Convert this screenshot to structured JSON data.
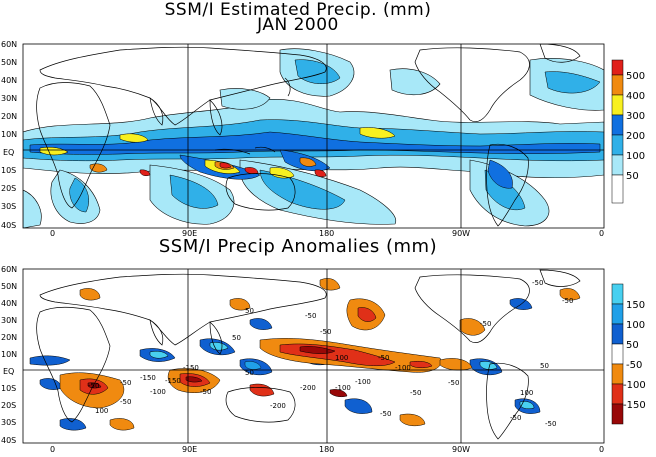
{
  "titles": {
    "top_line1": "SSM/I Estimated Precip. (mm)",
    "top_line2": "JAN 2000",
    "bottom": "SSM/I Precip Anomalies (mm)"
  },
  "lat_labels": [
    "60N",
    "50N",
    "40N",
    "30N",
    "20N",
    "10N",
    "EQ",
    "10S",
    "20S",
    "30S",
    "40S"
  ],
  "lon_labels": [
    "0",
    "90E",
    "180",
    "90W",
    "0"
  ],
  "precip_legend": {
    "labels": [
      "500",
      "400",
      "300",
      "200",
      "100",
      "50"
    ],
    "colors": [
      "#e0201a",
      "#f08a10",
      "#f8f020",
      "#1070e0",
      "#30b0e8",
      "#a8e8f8",
      "#ffffff"
    ]
  },
  "anomaly_legend": {
    "labels": [
      "150",
      "100",
      "50",
      "-50",
      "-100",
      "-150"
    ],
    "colors": [
      "#48d0f0",
      "#20a0e8",
      "#1060d0",
      "#ffffff",
      "#f08a10",
      "#e03018",
      "#980808"
    ]
  },
  "contour_labels_top": [],
  "contour_labels_bottom": [
    "-50",
    "-50",
    "50",
    "-50",
    "-50",
    "-50",
    "50",
    "100",
    "-50",
    "-100",
    "50",
    "-50",
    "-50",
    "-150",
    "-100",
    "-50",
    "-50",
    "100",
    "-200",
    "-100",
    "-200",
    "-150",
    "50",
    "-150",
    "-100",
    "-50",
    "-50",
    "100",
    "-50",
    "-50",
    "-50"
  ],
  "colors": {
    "ocean": "#ffffff",
    "land_outline": "#000000"
  }
}
